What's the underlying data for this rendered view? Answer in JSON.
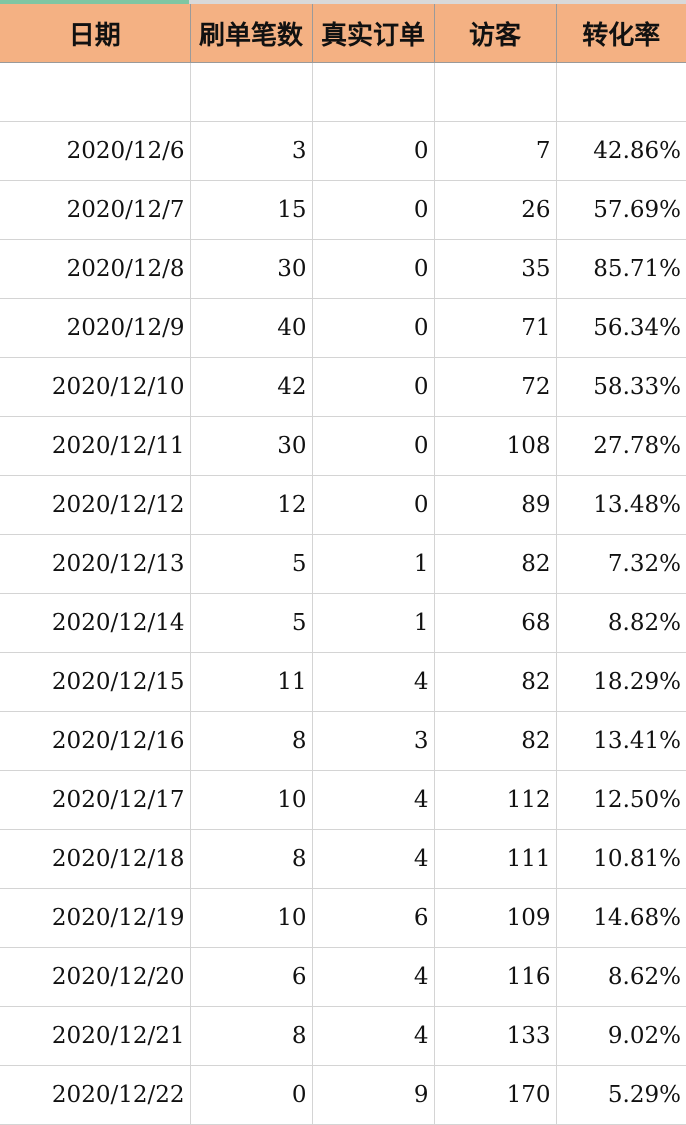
{
  "headers": [
    "日期",
    "刷单笔数",
    "真实订单",
    "访客",
    "转化率"
  ],
  "rows": [
    [
      "",
      "",
      "",
      "",
      ""
    ],
    [
      "2020/12/6",
      "3",
      "0",
      "7",
      "42.86%"
    ],
    [
      "2020/12/7",
      "15",
      "0",
      "26",
      "57.69%"
    ],
    [
      "2020/12/8",
      "30",
      "0",
      "35",
      "85.71%"
    ],
    [
      "2020/12/9",
      "40",
      "0",
      "71",
      "56.34%"
    ],
    [
      "2020/12/10",
      "42",
      "0",
      "72",
      "58.33%"
    ],
    [
      "2020/12/11",
      "30",
      "0",
      "108",
      "27.78%"
    ],
    [
      "2020/12/12",
      "12",
      "0",
      "89",
      "13.48%"
    ],
    [
      "2020/12/13",
      "5",
      "1",
      "82",
      "7.32%"
    ],
    [
      "2020/12/14",
      "5",
      "1",
      "68",
      "8.82%"
    ],
    [
      "2020/12/15",
      "11",
      "4",
      "82",
      "18.29%"
    ],
    [
      "2020/12/16",
      "8",
      "3",
      "82",
      "13.41%"
    ],
    [
      "2020/12/17",
      "10",
      "4",
      "112",
      "12.50%"
    ],
    [
      "2020/12/18",
      "8",
      "4",
      "111",
      "10.81%"
    ],
    [
      "2020/12/19",
      "10",
      "6",
      "109",
      "14.68%"
    ],
    [
      "2020/12/20",
      "6",
      "4",
      "116",
      "8.62%"
    ],
    [
      "2020/12/21",
      "8",
      "4",
      "133",
      "9.02%"
    ],
    [
      "2020/12/22",
      "0",
      "9",
      "170",
      "5.29%"
    ]
  ],
  "colors": {
    "header_bg": "#f4b183",
    "grid": "#d4d4d4",
    "selection": "#7fc6a2"
  }
}
